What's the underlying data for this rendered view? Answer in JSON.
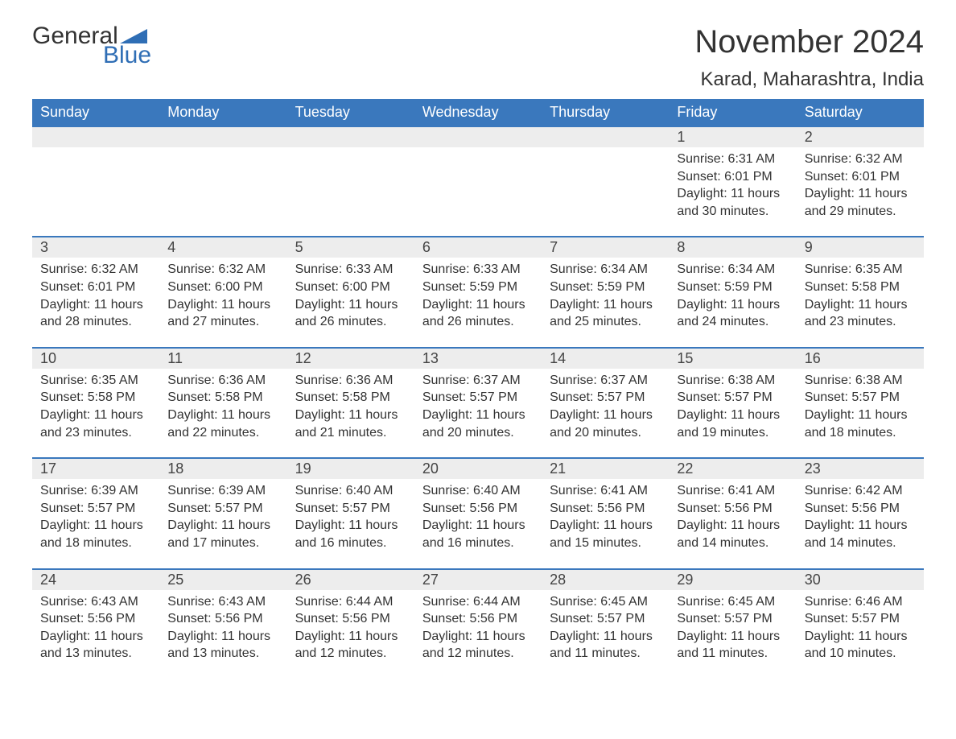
{
  "logo": {
    "word1": "General",
    "word2": "Blue",
    "triangle_color": "#2f6eb5"
  },
  "title": "November 2024",
  "location": "Karad, Maharashtra, India",
  "colors": {
    "header_bg": "#3a78bd",
    "header_fg": "#ffffff",
    "daynum_bg": "#ededed",
    "rule": "#3a78bd",
    "text": "#333333"
  },
  "week_days": [
    "Sunday",
    "Monday",
    "Tuesday",
    "Wednesday",
    "Thursday",
    "Friday",
    "Saturday"
  ],
  "weeks": [
    [
      null,
      null,
      null,
      null,
      null,
      {
        "n": "1",
        "sunrise": "6:31 AM",
        "sunset": "6:01 PM",
        "daylight": "11 hours and 30 minutes."
      },
      {
        "n": "2",
        "sunrise": "6:32 AM",
        "sunset": "6:01 PM",
        "daylight": "11 hours and 29 minutes."
      }
    ],
    [
      {
        "n": "3",
        "sunrise": "6:32 AM",
        "sunset": "6:01 PM",
        "daylight": "11 hours and 28 minutes."
      },
      {
        "n": "4",
        "sunrise": "6:32 AM",
        "sunset": "6:00 PM",
        "daylight": "11 hours and 27 minutes."
      },
      {
        "n": "5",
        "sunrise": "6:33 AM",
        "sunset": "6:00 PM",
        "daylight": "11 hours and 26 minutes."
      },
      {
        "n": "6",
        "sunrise": "6:33 AM",
        "sunset": "5:59 PM",
        "daylight": "11 hours and 26 minutes."
      },
      {
        "n": "7",
        "sunrise": "6:34 AM",
        "sunset": "5:59 PM",
        "daylight": "11 hours and 25 minutes."
      },
      {
        "n": "8",
        "sunrise": "6:34 AM",
        "sunset": "5:59 PM",
        "daylight": "11 hours and 24 minutes."
      },
      {
        "n": "9",
        "sunrise": "6:35 AM",
        "sunset": "5:58 PM",
        "daylight": "11 hours and 23 minutes."
      }
    ],
    [
      {
        "n": "10",
        "sunrise": "6:35 AM",
        "sunset": "5:58 PM",
        "daylight": "11 hours and 23 minutes."
      },
      {
        "n": "11",
        "sunrise": "6:36 AM",
        "sunset": "5:58 PM",
        "daylight": "11 hours and 22 minutes."
      },
      {
        "n": "12",
        "sunrise": "6:36 AM",
        "sunset": "5:58 PM",
        "daylight": "11 hours and 21 minutes."
      },
      {
        "n": "13",
        "sunrise": "6:37 AM",
        "sunset": "5:57 PM",
        "daylight": "11 hours and 20 minutes."
      },
      {
        "n": "14",
        "sunrise": "6:37 AM",
        "sunset": "5:57 PM",
        "daylight": "11 hours and 20 minutes."
      },
      {
        "n": "15",
        "sunrise": "6:38 AM",
        "sunset": "5:57 PM",
        "daylight": "11 hours and 19 minutes."
      },
      {
        "n": "16",
        "sunrise": "6:38 AM",
        "sunset": "5:57 PM",
        "daylight": "11 hours and 18 minutes."
      }
    ],
    [
      {
        "n": "17",
        "sunrise": "6:39 AM",
        "sunset": "5:57 PM",
        "daylight": "11 hours and 18 minutes."
      },
      {
        "n": "18",
        "sunrise": "6:39 AM",
        "sunset": "5:57 PM",
        "daylight": "11 hours and 17 minutes."
      },
      {
        "n": "19",
        "sunrise": "6:40 AM",
        "sunset": "5:57 PM",
        "daylight": "11 hours and 16 minutes."
      },
      {
        "n": "20",
        "sunrise": "6:40 AM",
        "sunset": "5:56 PM",
        "daylight": "11 hours and 16 minutes."
      },
      {
        "n": "21",
        "sunrise": "6:41 AM",
        "sunset": "5:56 PM",
        "daylight": "11 hours and 15 minutes."
      },
      {
        "n": "22",
        "sunrise": "6:41 AM",
        "sunset": "5:56 PM",
        "daylight": "11 hours and 14 minutes."
      },
      {
        "n": "23",
        "sunrise": "6:42 AM",
        "sunset": "5:56 PM",
        "daylight": "11 hours and 14 minutes."
      }
    ],
    [
      {
        "n": "24",
        "sunrise": "6:43 AM",
        "sunset": "5:56 PM",
        "daylight": "11 hours and 13 minutes."
      },
      {
        "n": "25",
        "sunrise": "6:43 AM",
        "sunset": "5:56 PM",
        "daylight": "11 hours and 13 minutes."
      },
      {
        "n": "26",
        "sunrise": "6:44 AM",
        "sunset": "5:56 PM",
        "daylight": "11 hours and 12 minutes."
      },
      {
        "n": "27",
        "sunrise": "6:44 AM",
        "sunset": "5:56 PM",
        "daylight": "11 hours and 12 minutes."
      },
      {
        "n": "28",
        "sunrise": "6:45 AM",
        "sunset": "5:57 PM",
        "daylight": "11 hours and 11 minutes."
      },
      {
        "n": "29",
        "sunrise": "6:45 AM",
        "sunset": "5:57 PM",
        "daylight": "11 hours and 11 minutes."
      },
      {
        "n": "30",
        "sunrise": "6:46 AM",
        "sunset": "5:57 PM",
        "daylight": "11 hours and 10 minutes."
      }
    ]
  ],
  "labels": {
    "sunrise": "Sunrise: ",
    "sunset": "Sunset: ",
    "daylight": "Daylight: "
  }
}
